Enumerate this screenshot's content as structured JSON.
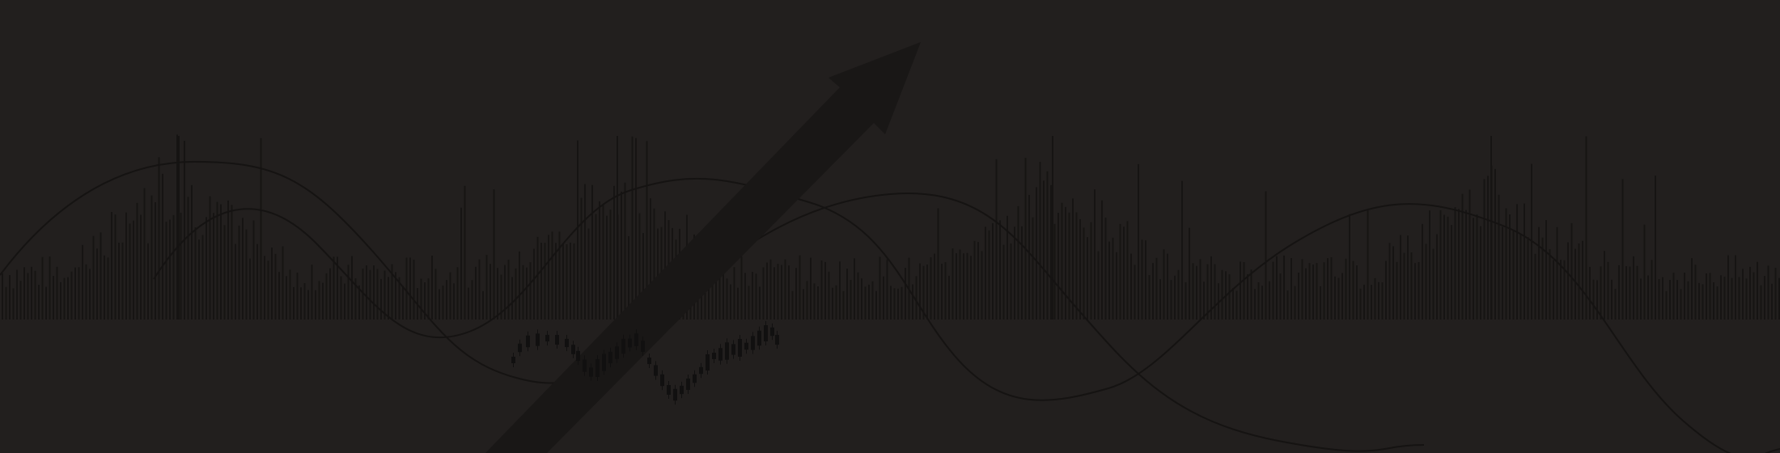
{
  "banner": {
    "background_color": "#221f1e",
    "bar_color": "#161413",
    "curve_color": "#151312",
    "arrow_color": "#191716",
    "candle_color": "#111010",
    "arrow_icon": "trend-up-arrow-icon"
  }
}
